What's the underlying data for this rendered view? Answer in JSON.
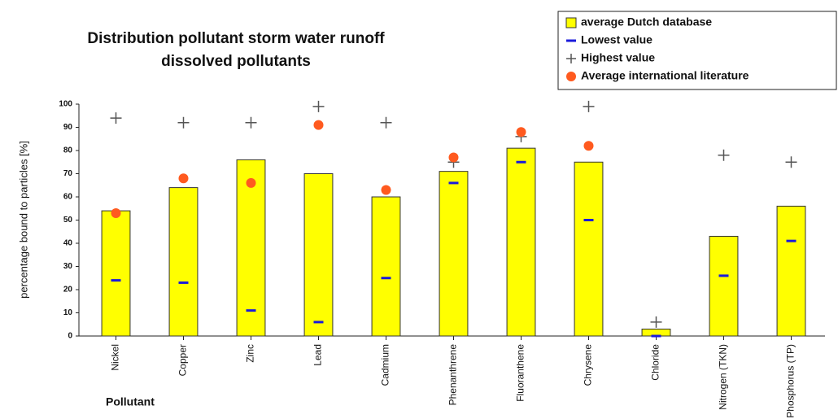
{
  "chart_data": {
    "type": "bar",
    "title": "Distribution pollutant storm water runoff",
    "subtitle": "dissolved pollutants",
    "x_label": "Pollutant",
    "y_label": "percentage bound to particles [%]",
    "categories": [
      "Nickel",
      "Copper",
      "Zinc",
      "Lead",
      "Cadmium",
      "Phenanthrene",
      "Fluoranthene",
      "Chrysene",
      "Chloride",
      "Nitrogen (TKN)",
      "Phosphorus (TP)"
    ],
    "series": [
      {
        "name": "average Dutch database",
        "marker": "bar",
        "color": "#ffff00",
        "values": [
          54,
          64,
          76,
          70,
          60,
          71,
          81,
          75,
          3,
          43,
          56
        ]
      },
      {
        "name": "Lowest value",
        "marker": "dash",
        "color": "#1a1adb",
        "values": [
          24,
          23,
          11,
          6,
          25,
          66,
          75,
          50,
          0,
          26,
          41
        ]
      },
      {
        "name": "Highest value",
        "marker": "plus",
        "color": "#555555",
        "values": [
          94,
          92,
          92,
          99,
          92,
          75,
          86,
          99,
          6,
          78,
          75
        ]
      },
      {
        "name": "Average international literature",
        "marker": "dot",
        "color": "#ff5a1f",
        "values": [
          53,
          68,
          66,
          91,
          63,
          77,
          88,
          82,
          null,
          null,
          null
        ]
      }
    ],
    "ylim": [
      0,
      100
    ],
    "yticks": [
      0,
      10,
      20,
      30,
      40,
      50,
      60,
      70,
      80,
      90,
      100
    ],
    "legend": "top-right"
  }
}
